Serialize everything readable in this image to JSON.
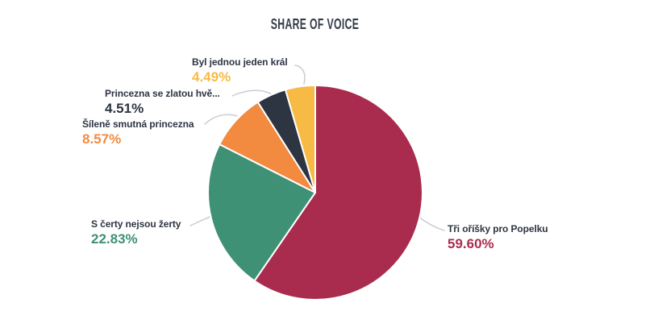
{
  "header": {
    "title": "SHARE OF VOICE"
  },
  "chart_data": {
    "type": "pie",
    "title": "SHARE OF VOICE",
    "unit": "%",
    "start_angle_deg": 0,
    "direction": "clockwise",
    "labels_style": "outside-with-leader-lines",
    "slices": [
      {
        "label": "Tři oříšky pro Popelku",
        "value": 59.6,
        "value_label": "59.60%",
        "color": "#a92c4e"
      },
      {
        "label": "S čerty nejsou žerty",
        "value": 22.83,
        "value_label": "22.83%",
        "color": "#3f9176"
      },
      {
        "label": "Šíleně smutná princezna",
        "value": 8.57,
        "value_label": "8.57%",
        "color": "#f28a40"
      },
      {
        "label": "Princezna se zlatou hvě...",
        "value": 4.51,
        "value_label": "4.51%",
        "color": "#2d3442"
      },
      {
        "label": "Byl jednou jeden král",
        "value": 4.49,
        "value_label": "4.49%",
        "color": "#f7ba45"
      }
    ],
    "colors": {
      "leader_line": "#c9ccd6",
      "title_text": "#333a4a",
      "label_text": "#2d3442",
      "slice_border": "#ffffff"
    }
  }
}
